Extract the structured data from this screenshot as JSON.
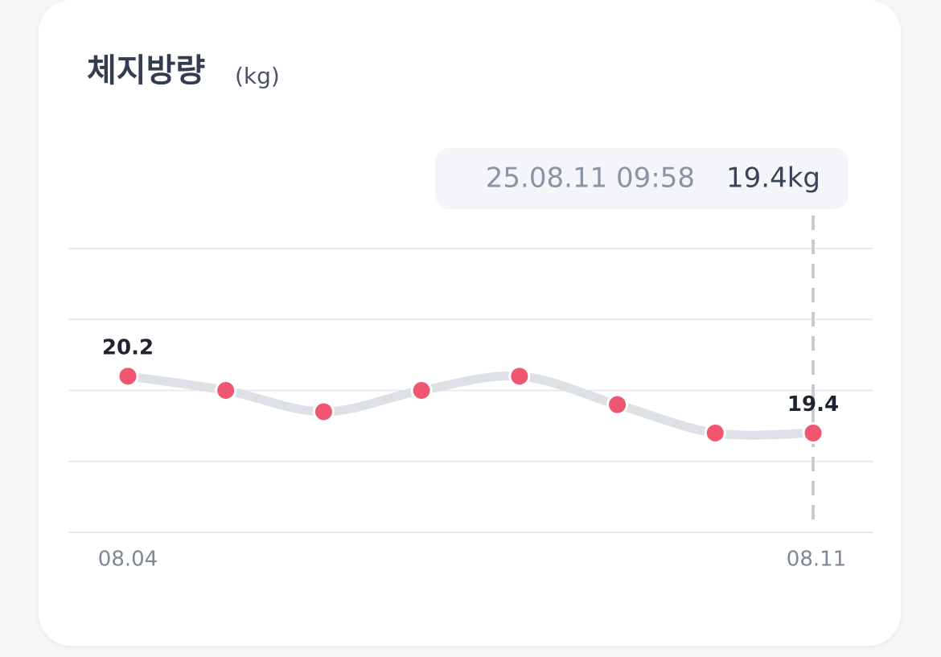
{
  "chart_data": {
    "type": "line",
    "title": "체지방량",
    "unit": "(kg)",
    "categories": [
      "08.04",
      null,
      null,
      null,
      null,
      null,
      null,
      "08.11"
    ],
    "series": [
      {
        "color": "#f0566f",
        "line_color": "#dde0e5",
        "values": [
          20.2,
          20.0,
          19.7,
          20.0,
          20.2,
          19.8,
          19.4,
          19.4
        ]
      }
    ],
    "labeled_points": [
      0,
      7
    ],
    "ylim": [
      18,
      22
    ],
    "yticks": [
      18,
      19,
      20,
      21,
      22
    ],
    "grid": true,
    "tooltip": {
      "index": 7,
      "date": "25.08.11 09:58",
      "value_label": "19.4kg"
    }
  }
}
